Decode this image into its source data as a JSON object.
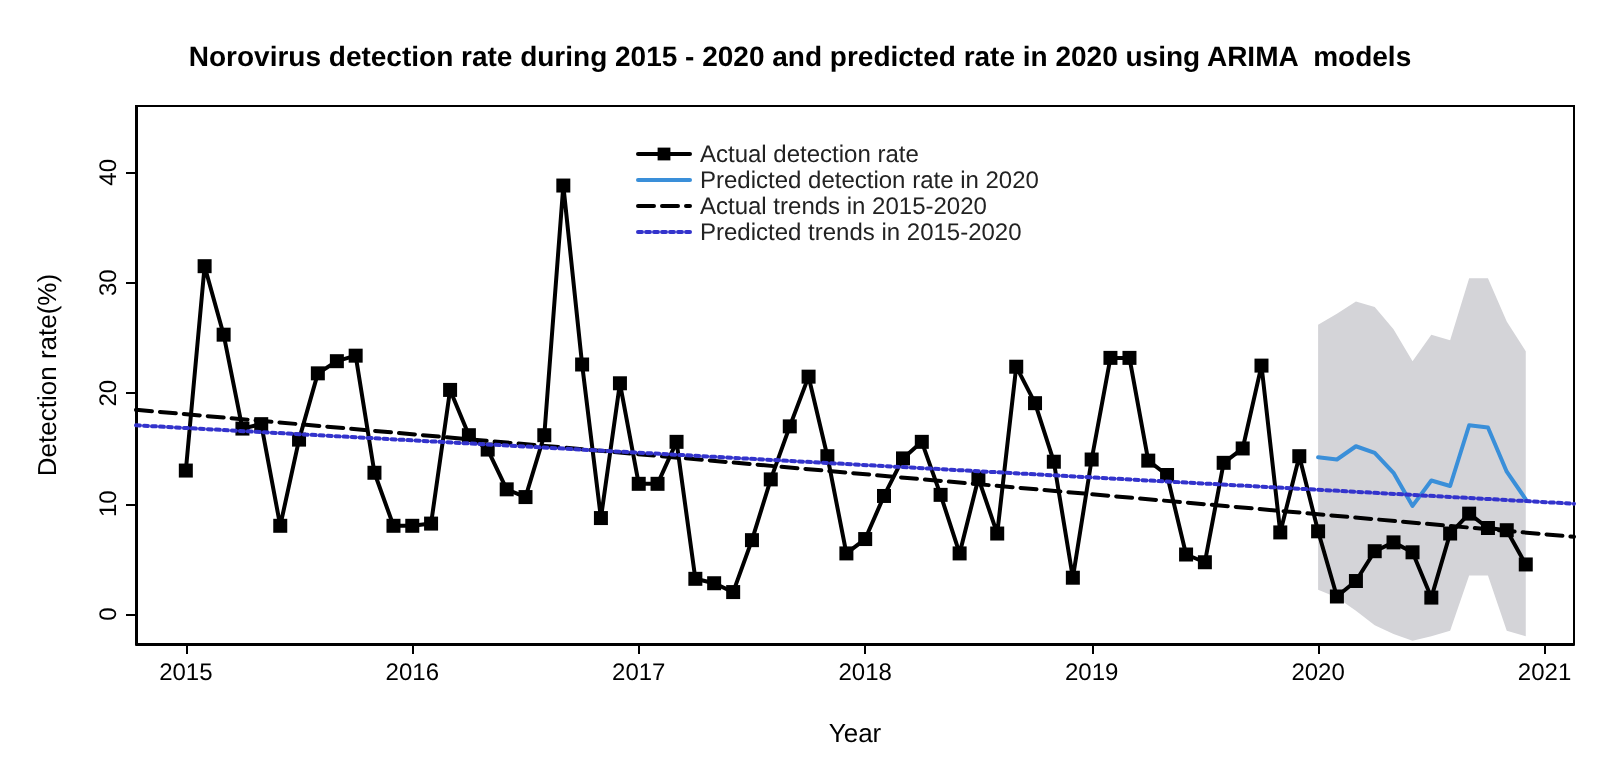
{
  "chart_data": {
    "type": "line",
    "title": "Norovirus detection rate during 2015 - 2020 and predicted rate in 2020 using ARIMA  models",
    "xlabel": "Year",
    "ylabel": "Detection rate(%)",
    "xlim": [
      2014.78,
      2021.13
    ],
    "xticks": [
      2015,
      2016,
      2017,
      2018,
      2019,
      2020,
      2021
    ],
    "ylim": [
      -2.7,
      46
    ],
    "yticks": [
      0,
      10,
      20,
      30,
      40
    ],
    "grid": false,
    "legend": "top",
    "series": [
      {
        "name": "Actual detection rate",
        "color": "#000000",
        "marker": "square",
        "line_style": "solid",
        "x": [
          2015,
          2015.083,
          2015.167,
          2015.25,
          2015.333,
          2015.417,
          2015.5,
          2015.583,
          2015.667,
          2015.75,
          2015.833,
          2015.917,
          2016,
          2016.083,
          2016.167,
          2016.25,
          2016.333,
          2016.417,
          2016.5,
          2016.583,
          2016.667,
          2016.75,
          2016.833,
          2016.917,
          2017,
          2017.083,
          2017.167,
          2017.25,
          2017.333,
          2017.417,
          2017.5,
          2017.583,
          2017.667,
          2017.75,
          2017.833,
          2017.917,
          2018,
          2018.083,
          2018.167,
          2018.25,
          2018.333,
          2018.417,
          2018.5,
          2018.583,
          2018.667,
          2018.75,
          2018.833,
          2018.917,
          2019,
          2019.083,
          2019.167,
          2019.25,
          2019.333,
          2019.417,
          2019.5,
          2019.583,
          2019.667,
          2019.75,
          2019.833,
          2019.917,
          2020,
          2020.083,
          2020.167,
          2020.25,
          2020.333,
          2020.417,
          2020.5,
          2020.583,
          2020.667,
          2020.75,
          2020.833,
          2020.917
        ],
        "values": [
          13,
          31.5,
          25.3,
          16.8,
          17.2,
          8,
          15.8,
          21.8,
          22.9,
          23.4,
          12.8,
          8,
          8,
          8.2,
          20.3,
          16.2,
          14.9,
          11.3,
          10.6,
          16.2,
          38.8,
          22.6,
          8.7,
          20.9,
          11.8,
          11.8,
          15.6,
          3.2,
          2.8,
          2,
          6.7,
          12.2,
          17,
          21.5,
          14.3,
          5.5,
          6.8,
          10.7,
          14.1,
          15.6,
          10.8,
          5.5,
          12.3,
          7.3,
          22.4,
          19.1,
          13.8,
          3.3,
          14,
          23.2,
          23.2,
          13.9,
          12.6,
          5.4,
          4.7,
          13.7,
          15,
          22.5,
          7.4,
          14.3,
          7.5,
          1.6,
          3,
          5.7,
          6.5,
          5.6,
          1.5,
          7.3,
          9.1,
          7.8,
          7.6,
          4.5
        ]
      },
      {
        "name": "Predicted detection rate in 2020",
        "color": "#3a8fd9",
        "marker": "none",
        "line_style": "solid",
        "x": [
          2020,
          2020.083,
          2020.167,
          2020.25,
          2020.333,
          2020.417,
          2020.5,
          2020.583,
          2020.667,
          2020.75,
          2020.833,
          2020.917
        ],
        "values": [
          14.2,
          14,
          15.2,
          14.6,
          12.8,
          9.8,
          12.1,
          11.6,
          17.1,
          16.9,
          12.9,
          10.4
        ],
        "upper": [
          26.2,
          27.2,
          28.3,
          27.8,
          25.8,
          22.9,
          25.3,
          24.8,
          30.4,
          30.4,
          26.5,
          23.8
        ],
        "lower": [
          2.2,
          1.5,
          0.3,
          -1,
          -1.8,
          -2.4,
          -2,
          -1.5,
          3.5,
          3.5,
          -1.5,
          -2
        ]
      },
      {
        "name": "Actual trends in 2015-2020",
        "color": "#000000",
        "marker": "none",
        "line_style": "dashed",
        "x": [
          2014.78,
          2021.13
        ],
        "values": [
          18.5,
          7
        ]
      },
      {
        "name": "Predicted trends in 2015-2020",
        "color": "#3333cc",
        "marker": "none",
        "line_style": "dotted",
        "x": [
          2014.78,
          2021.13
        ],
        "values": [
          17.1,
          10
        ]
      }
    ]
  }
}
